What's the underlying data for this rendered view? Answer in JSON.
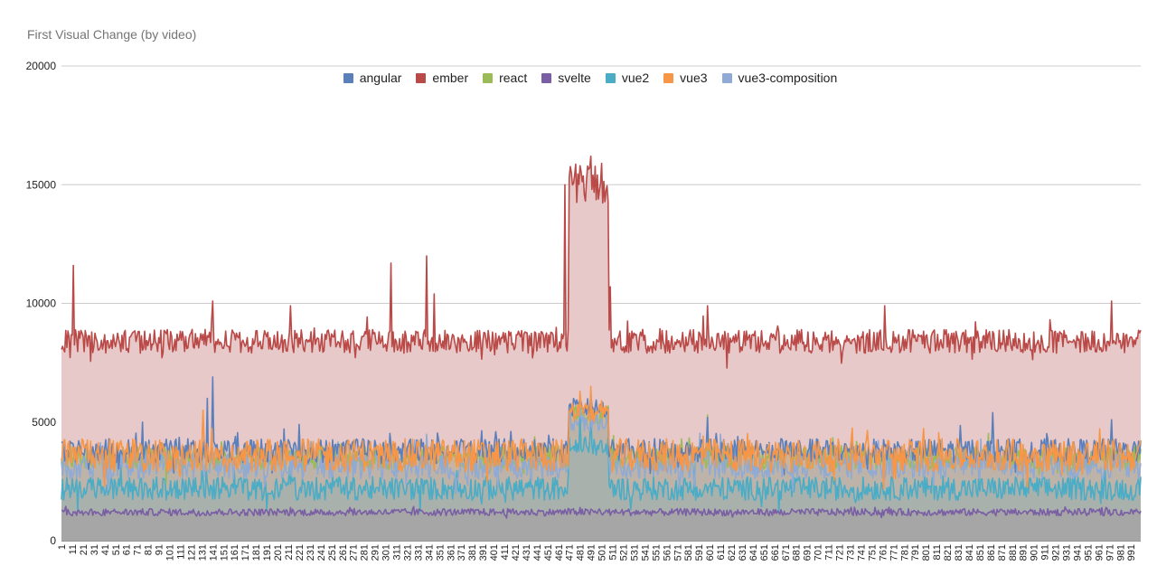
{
  "chart_data": {
    "type": "area",
    "title": "First Visual Change (by video)",
    "xlabel": "",
    "ylabel": "",
    "ylim": [
      0,
      20000
    ],
    "yticks": [
      0,
      5000,
      10000,
      15000,
      20000
    ],
    "x_tick_labels": [
      "1",
      "11",
      "21",
      "31",
      "41",
      "51",
      "61",
      "71",
      "81",
      "91",
      "101",
      "111",
      "121",
      "131",
      "141",
      "151",
      "161",
      "171",
      "181",
      "191",
      "201",
      "211",
      "221",
      "231",
      "241",
      "251",
      "261",
      "271",
      "281",
      "291",
      "301",
      "311",
      "321",
      "331",
      "341",
      "351",
      "361",
      "371",
      "381",
      "391",
      "401",
      "411",
      "421",
      "431",
      "441",
      "451",
      "461",
      "471",
      "481",
      "491",
      "501",
      "511",
      "521",
      "531",
      "541",
      "551",
      "561",
      "571",
      "581",
      "591",
      "601",
      "611",
      "621",
      "631",
      "641",
      "651",
      "661",
      "671",
      "681",
      "691",
      "701",
      "711",
      "721",
      "731",
      "741",
      "751",
      "761",
      "771",
      "781",
      "791",
      "801",
      "811",
      "821",
      "831",
      "841",
      "851",
      "861",
      "871",
      "881",
      "891",
      "901",
      "911",
      "921",
      "931",
      "941",
      "951",
      "961",
      "971",
      "981",
      "991"
    ],
    "x_count": 1000,
    "grid": true,
    "legend_position": "top",
    "series": [
      {
        "name": "angular",
        "color": "#5b7fbb",
        "typical": 3800,
        "spread": 500,
        "outliers": [
          [
            140,
            6900
          ],
          [
            135,
            6000
          ],
          [
            75,
            5000
          ],
          [
            220,
            4900
          ],
          [
            862,
            5400
          ],
          [
            972,
            5100
          ],
          [
            598,
            5200
          ],
          [
            480,
            6000
          ],
          [
            490,
            6200
          ],
          [
            500,
            5800
          ]
        ]
      },
      {
        "name": "ember",
        "color": "#b94a48",
        "typical": 8400,
        "spread": 500,
        "outliers": [
          [
            11,
            11600
          ],
          [
            305,
            11700
          ],
          [
            338,
            12000
          ],
          [
            345,
            10400
          ],
          [
            140,
            10100
          ],
          [
            212,
            9900
          ],
          [
            598,
            9900
          ],
          [
            762,
            9900
          ],
          [
            972,
            10100
          ],
          [
            466,
            15000
          ],
          [
            472,
            15500
          ],
          [
            480,
            15800
          ],
          [
            490,
            16200
          ],
          [
            500,
            15900
          ],
          [
            506,
            14300
          ],
          [
            508,
            10700
          ]
        ]
      },
      {
        "name": "react",
        "color": "#9bbb59",
        "typical": 3500,
        "spread": 500,
        "outliers": [
          [
            598,
            5300
          ],
          [
            480,
            5900
          ],
          [
            490,
            5800
          ]
        ]
      },
      {
        "name": "svelte",
        "color": "#7a5fa4",
        "typical": 1200,
        "spread": 150,
        "outliers": [
          [
            480,
            1400
          ]
        ]
      },
      {
        "name": "vue2",
        "color": "#4bacc6",
        "typical": 2200,
        "spread": 500,
        "outliers": [
          [
            480,
            5400
          ],
          [
            490,
            5500
          ]
        ]
      },
      {
        "name": "vue3",
        "color": "#f79646",
        "typical": 3600,
        "spread": 700,
        "outliers": [
          [
            131,
            5500
          ],
          [
            480,
            6300
          ],
          [
            490,
            6500
          ],
          [
            500,
            5900
          ]
        ]
      },
      {
        "name": "vue3-composition",
        "color": "#8eaad5",
        "typical": 3200,
        "spread": 600,
        "outliers": [
          [
            480,
            5600
          ],
          [
            490,
            5700
          ]
        ]
      }
    ]
  }
}
